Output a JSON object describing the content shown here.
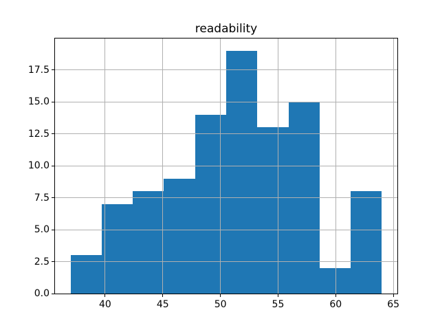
{
  "title": "readability",
  "chart_data": {
    "type": "bar",
    "subtype": "histogram",
    "title": "readability",
    "xlabel": "",
    "ylabel": "",
    "bin_edges": [
      37.0,
      39.7,
      42.4,
      45.1,
      47.8,
      50.5,
      53.2,
      55.9,
      58.6,
      61.3,
      64.0
    ],
    "values": [
      3,
      7,
      8,
      9,
      14,
      19,
      13,
      15,
      2,
      8
    ],
    "xlim": [
      35.65,
      65.35
    ],
    "ylim": [
      0,
      19.95
    ],
    "x_ticks": [
      40,
      45,
      50,
      55,
      60,
      65
    ],
    "x_tick_labels": [
      "40",
      "45",
      "50",
      "55",
      "60",
      "65"
    ],
    "y_ticks": [
      0,
      2.5,
      5,
      7.5,
      10,
      12.5,
      15,
      17.5
    ],
    "y_tick_labels": [
      "0.0",
      "2.5",
      "5.0",
      "7.5",
      "10.0",
      "12.5",
      "15.0",
      "17.5"
    ],
    "grid": true,
    "legend": false,
    "bar_color": "#1f77b4",
    "grid_color": "#b0b0b0",
    "frame_color": "#000000",
    "background_color": "#ffffff"
  }
}
